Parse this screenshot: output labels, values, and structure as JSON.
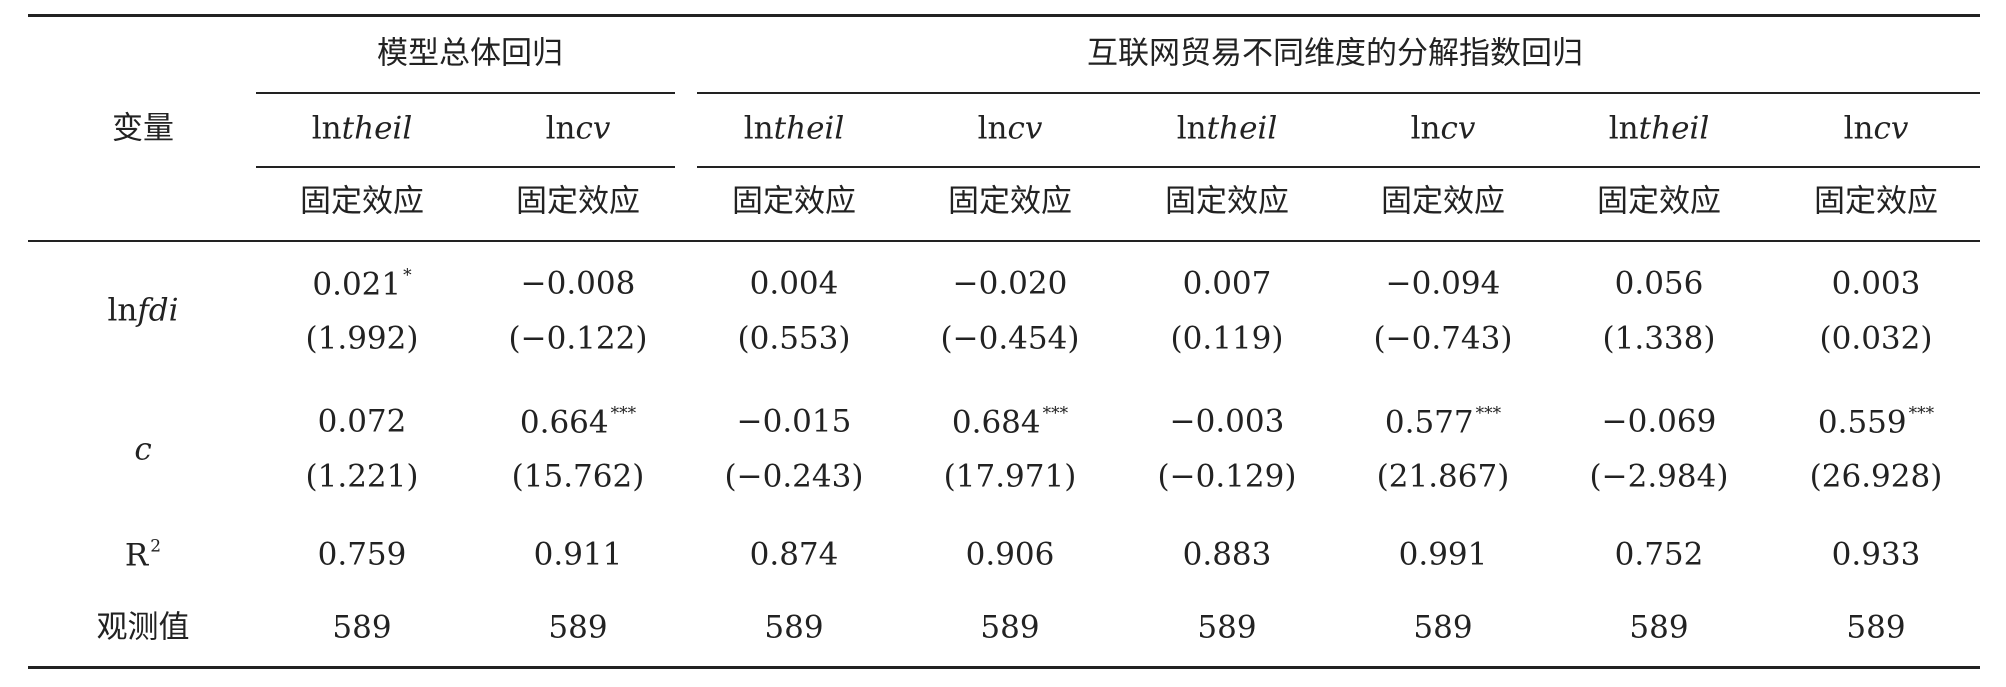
{
  "table": {
    "row_header": "变量",
    "groups": [
      {
        "title": "模型总体回归"
      },
      {
        "title": "互联网贸易不同维度的分解指数回归"
      }
    ],
    "columns": [
      {
        "prefix": "ln",
        "var": "theil",
        "method": "固定效应"
      },
      {
        "prefix": "ln",
        "var": "cv",
        "method": "固定效应"
      },
      {
        "prefix": "ln",
        "var": "theil",
        "method": "固定效应"
      },
      {
        "prefix": "ln",
        "var": "cv",
        "method": "固定效应"
      },
      {
        "prefix": "ln",
        "var": "theil",
        "method": "固定效应"
      },
      {
        "prefix": "ln",
        "var": "cv",
        "method": "固定效应"
      },
      {
        "prefix": "ln",
        "var": "theil",
        "method": "固定效应"
      },
      {
        "prefix": "ln",
        "var": "cv",
        "method": "固定效应"
      }
    ],
    "rows": [
      {
        "label": {
          "prefix": "ln",
          "var": "fdi"
        },
        "cells": [
          {
            "coef": "0.021",
            "stars": "*",
            "t": "(1.992)"
          },
          {
            "coef": "−0.008",
            "t": "(−0.122)"
          },
          {
            "coef": "0.004",
            "t": "(0.553)"
          },
          {
            "coef": "−0.020",
            "t": "(−0.454)"
          },
          {
            "coef": "0.007",
            "t": "(0.119)"
          },
          {
            "coef": "−0.094",
            "t": "(−0.743)"
          },
          {
            "coef": "0.056",
            "t": "(1.338)"
          },
          {
            "coef": "0.003",
            "t": "(0.032)"
          }
        ]
      },
      {
        "label": {
          "var": "c"
        },
        "cells": [
          {
            "coef": "0.072",
            "t": "(1.221)"
          },
          {
            "coef": "0.664",
            "stars": "***",
            "t": "(15.762)"
          },
          {
            "coef": "−0.015",
            "t": "(−0.243)"
          },
          {
            "coef": "0.684",
            "stars": "***",
            "t": "(17.971)"
          },
          {
            "coef": "−0.003",
            "t": "(−0.129)"
          },
          {
            "coef": "0.577",
            "stars": "***",
            "t": "(21.867)"
          },
          {
            "coef": "−0.069",
            "t": "(−2.984)"
          },
          {
            "coef": "0.559",
            "stars": "***",
            "t": "(26.928)"
          }
        ]
      },
      {
        "label": {
          "base": "R",
          "sup": "2"
        },
        "cells": [
          {
            "coef": "0.759"
          },
          {
            "coef": "0.911"
          },
          {
            "coef": "0.874"
          },
          {
            "coef": "0.906"
          },
          {
            "coef": "0.883"
          },
          {
            "coef": "0.991"
          },
          {
            "coef": "0.752"
          },
          {
            "coef": "0.933"
          }
        ]
      },
      {
        "label": {
          "text": "观测值"
        },
        "cells": [
          {
            "coef": "589"
          },
          {
            "coef": "589"
          },
          {
            "coef": "589"
          },
          {
            "coef": "589"
          },
          {
            "coef": "589"
          },
          {
            "coef": "589"
          },
          {
            "coef": "589"
          },
          {
            "coef": "589"
          }
        ]
      }
    ]
  }
}
